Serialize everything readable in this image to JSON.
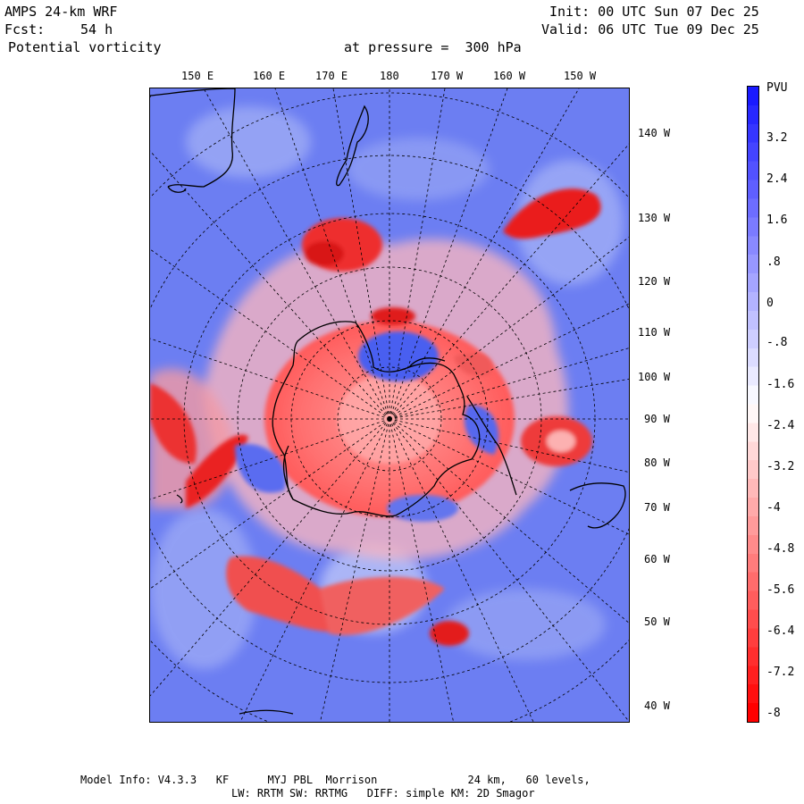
{
  "header": {
    "model": "AMPS 24-km WRF",
    "init": "Init: 00 UTC Sun 07 Dec 25",
    "fcst_label": "Fcst:",
    "fcst_value": "54 h",
    "valid": "Valid: 06 UTC Tue 09 Dec 25",
    "field": "Potential vorticity",
    "level": "at pressure =  300 hPa"
  },
  "map": {
    "top_longitudes": [
      "150 E",
      "160 E",
      "170 E",
      "180",
      "170 W",
      "160 W",
      "150 W"
    ],
    "right_longitudes": [
      "140 W",
      "130 W",
      "120 W",
      "110 W",
      "100 W",
      "90 W",
      "80 W",
      "70 W",
      "60 W",
      "50 W",
      "40 W"
    ]
  },
  "colorbar": {
    "unit": "PVU",
    "labels": [
      "3.2",
      "2.4",
      "1.6",
      ".8",
      "0",
      "-.8",
      "-1.6",
      "-2.4",
      "-3.2",
      "-4",
      "-4.8",
      "-5.6",
      "-6.4",
      "-7.2",
      "-8"
    ],
    "top_color": "#1a1aff",
    "bottom_color": "#ff0000"
  },
  "footer": {
    "line1": "Model Info: V4.3.3   KF      MYJ PBL  Morrison              24 km,   60 levels,",
    "line2": "LW: RRTM SW: RRTMG   DIFF: simple KM: 2D Smagor"
  }
}
